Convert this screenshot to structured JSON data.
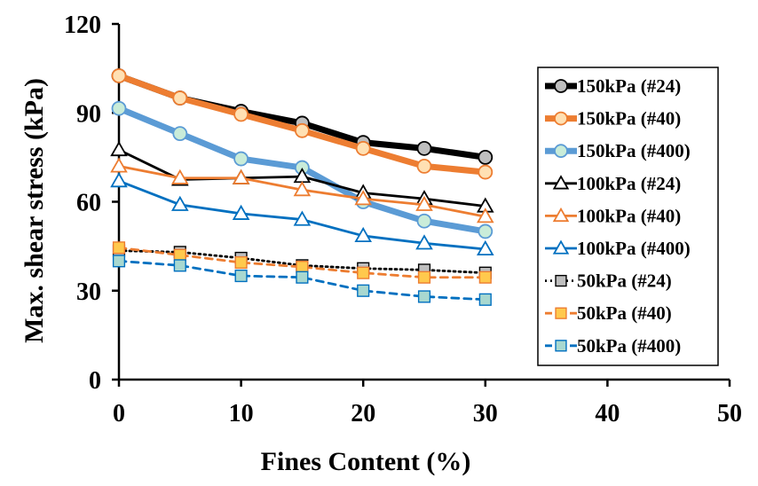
{
  "chart_data": {
    "type": "line",
    "title": "",
    "xlabel": "Fines Content (%)",
    "ylabel": "Max. shear stress (kPa)",
    "xlim": [
      0,
      50
    ],
    "ylim": [
      0,
      120
    ],
    "xticks": [
      0,
      10,
      20,
      30,
      40,
      50
    ],
    "yticks": [
      0,
      30,
      60,
      90,
      120
    ],
    "xtick_labels": [
      "0",
      "10",
      "20",
      "30",
      "40",
      "50"
    ],
    "ytick_labels": [
      "0",
      "30",
      "60",
      "90",
      "120"
    ],
    "grid": false,
    "legend_position": "right",
    "x": [
      0,
      5,
      10,
      15,
      20,
      25,
      30
    ],
    "series": [
      {
        "name": "150kPa (#24)",
        "values": [
          102.5,
          95,
          90.5,
          86.5,
          80,
          78,
          75
        ],
        "color": "#000000",
        "marker": "circle",
        "marker_fill": "#bfbfbf",
        "line_style": "solid",
        "line_weight": "heavy"
      },
      {
        "name": "150kPa (#40)",
        "values": [
          102.5,
          95,
          89.5,
          84,
          78,
          72,
          70
        ],
        "color": "#ed7d31",
        "marker": "circle",
        "marker_fill": "#ffe0b3",
        "line_style": "solid",
        "line_weight": "heavy"
      },
      {
        "name": "150kPa (#400)",
        "values": [
          91.5,
          83,
          74.5,
          71.5,
          60,
          53.5,
          50
        ],
        "color": "#5b9bd5",
        "marker": "circle",
        "marker_fill": "#c9ecd9",
        "line_style": "solid",
        "line_weight": "heavy"
      },
      {
        "name": "100kPa (#24)",
        "values": [
          77.5,
          67.5,
          68,
          68.5,
          63,
          61,
          58.5
        ],
        "color": "#000000",
        "marker": "triangle",
        "marker_fill": "#ffffff",
        "line_style": "solid",
        "line_weight": "normal"
      },
      {
        "name": "100kPa (#40)",
        "values": [
          72,
          68,
          68,
          64,
          61,
          59,
          55
        ],
        "color": "#ed7d31",
        "marker": "triangle",
        "marker_fill": "#ffffff",
        "line_style": "solid",
        "line_weight": "normal"
      },
      {
        "name": "100kPa (#400)",
        "values": [
          67,
          59,
          56,
          54,
          48.5,
          46,
          44
        ],
        "color": "#0070c0",
        "marker": "triangle",
        "marker_fill": "#ffffff",
        "line_style": "solid",
        "line_weight": "normal"
      },
      {
        "name": "50kPa (#24)",
        "values": [
          43.5,
          43,
          41,
          38.5,
          37.5,
          37,
          36
        ],
        "color": "#000000",
        "marker": "square",
        "marker_fill": "#bfbfbf",
        "line_style": "dotted",
        "line_weight": "normal"
      },
      {
        "name": "50kPa (#40)",
        "values": [
          44.5,
          42,
          39.5,
          38,
          36,
          34.5,
          34.5
        ],
        "color": "#ed7d31",
        "marker": "square",
        "marker_fill": "#ffc94d",
        "line_style": "dashed",
        "line_weight": "normal"
      },
      {
        "name": "50kPa (#400)",
        "values": [
          40,
          38.5,
          35,
          34.5,
          30,
          28,
          27
        ],
        "color": "#0070c0",
        "marker": "square",
        "marker_fill": "#a8d8d0",
        "line_style": "dashed",
        "line_weight": "normal"
      }
    ]
  }
}
